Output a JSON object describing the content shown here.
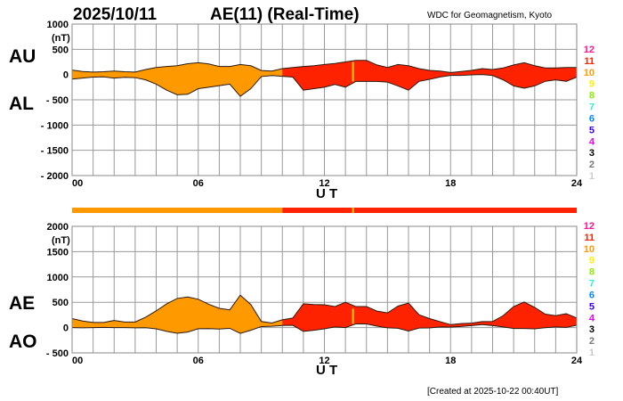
{
  "header": {
    "date": "2025/10/11",
    "title": "AE(11) (Real-Time)",
    "source": "WDC for Geomagnetism, Kyoto",
    "created": "[Created at 2025-10-22 00:40UT]"
  },
  "colors": {
    "orange": "#ff9900",
    "red": "#ff2200",
    "yellow_marker": "#ffcc00"
  },
  "chart_data": [
    {
      "type": "area",
      "name": "AU/AL",
      "labels": {
        "upper": "AU",
        "lower": "AL"
      },
      "xlabel": "U T",
      "ylabel": "(nT)",
      "xlim": [
        0,
        24
      ],
      "ylim": [
        -2000,
        1000
      ],
      "yticks": [
        1000,
        500,
        0,
        -500,
        -1000,
        -1500,
        -2000
      ],
      "ytick_labels": [
        "1000",
        "500",
        "0",
        "- 500",
        "- 1000",
        "- 1500",
        "- 2000"
      ],
      "xtick_labels": [
        "00",
        "06",
        "12",
        "18",
        "24"
      ],
      "grid": true,
      "x": [
        0,
        0.5,
        1,
        1.5,
        2,
        2.5,
        3,
        3.5,
        4,
        4.5,
        5,
        5.5,
        6,
        6.5,
        7,
        7.5,
        8,
        8.5,
        9,
        9.5,
        10,
        10.5,
        11,
        11.5,
        12,
        12.5,
        13,
        13.5,
        14,
        14.5,
        15,
        15.5,
        16,
        16.5,
        17,
        17.5,
        18,
        18.5,
        19,
        19.5,
        20,
        20.5,
        21,
        21.5,
        22,
        22.5,
        23,
        23.5,
        24
      ],
      "series": [
        {
          "name": "AU",
          "values": [
            88,
            60,
            50,
            55,
            70,
            55,
            50,
            100,
            140,
            160,
            175,
            215,
            235,
            210,
            160,
            160,
            200,
            175,
            80,
            70,
            118,
            140,
            160,
            175,
            200,
            220,
            250,
            280,
            280,
            190,
            140,
            200,
            175,
            118,
            83,
            70,
            40,
            60,
            83,
            118,
            100,
            130,
            190,
            235,
            175,
            130,
            130,
            140,
            140
          ]
        },
        {
          "name": "AL",
          "values": [
            -90,
            -70,
            -50,
            -45,
            -70,
            -55,
            -60,
            -105,
            -190,
            -310,
            -400,
            -390,
            -280,
            -250,
            -220,
            -190,
            -430,
            -280,
            -40,
            -20,
            -35,
            -50,
            -310,
            -280,
            -250,
            -195,
            -250,
            -135,
            -135,
            -135,
            -150,
            -225,
            -310,
            -135,
            -95,
            -47,
            -18,
            -18,
            -5,
            0,
            -20,
            -105,
            -225,
            -270,
            -225,
            -135,
            -105,
            -135,
            -50
          ]
        }
      ]
    },
    {
      "type": "area",
      "name": "AE/AO",
      "labels": {
        "upper": "AE",
        "lower": "AO"
      },
      "xlabel": "U T",
      "ylabel": "(nT)",
      "xlim": [
        0,
        24
      ],
      "ylim": [
        -500,
        2000
      ],
      "yticks": [
        2000,
        1500,
        1000,
        500,
        0,
        -500
      ],
      "ytick_labels": [
        "2000",
        "1500",
        "1000",
        "500",
        "0",
        "- 500"
      ],
      "xtick_labels": [
        "00",
        "06",
        "12",
        "18",
        "24"
      ],
      "grid": true,
      "x": [
        0,
        0.5,
        1,
        1.5,
        2,
        2.5,
        3,
        3.5,
        4,
        4.5,
        5,
        5.5,
        6,
        6.5,
        7,
        7.5,
        8,
        8.5,
        9,
        9.5,
        10,
        10.5,
        11,
        11.5,
        12,
        12.5,
        13,
        13.5,
        14,
        14.5,
        15,
        15.5,
        16,
        16.5,
        17,
        17.5,
        18,
        18.5,
        19,
        19.5,
        20,
        20.5,
        21,
        21.5,
        22,
        22.5,
        23,
        23.5,
        24
      ],
      "series": [
        {
          "name": "AE",
          "values": [
            178,
            130,
            100,
            100,
            140,
            110,
            110,
            205,
            330,
            470,
            575,
            605,
            560,
            460,
            380,
            350,
            640,
            455,
            120,
            90,
            153,
            190,
            470,
            455,
            450,
            415,
            500,
            415,
            415,
            325,
            290,
            425,
            485,
            253,
            178,
            117,
            58,
            78,
            88,
            118,
            120,
            235,
            415,
            505,
            400,
            265,
            235,
            275,
            190
          ]
        },
        {
          "name": "AO",
          "values": [
            -1,
            -5,
            0,
            5,
            0,
            0,
            -5,
            -3,
            -25,
            -75,
            -113,
            -88,
            -23,
            -20,
            -30,
            -15,
            -115,
            -53,
            20,
            25,
            42,
            45,
            -75,
            -53,
            -25,
            13,
            0,
            73,
            73,
            28,
            -5,
            -13,
            -68,
            -9,
            -6,
            12,
            11,
            21,
            39,
            59,
            40,
            13,
            -18,
            -18,
            -25,
            -3,
            13,
            3,
            45
          ]
        }
      ]
    }
  ],
  "station_bar": {
    "orange_until_hour": 10,
    "marker_hour": 13.36
  },
  "station_legend": [
    {
      "label": "12",
      "color": "#ff1493"
    },
    {
      "label": "11",
      "color": "#ff2200"
    },
    {
      "label": "10",
      "color": "#ff9900"
    },
    {
      "label": "9",
      "color": "#ffee00"
    },
    {
      "label": "8",
      "color": "#88ee00"
    },
    {
      "label": "7",
      "color": "#33eecc"
    },
    {
      "label": "6",
      "color": "#0088ff"
    },
    {
      "label": "5",
      "color": "#3300ff"
    },
    {
      "label": "4",
      "color": "#ee00ee"
    },
    {
      "label": "3",
      "color": "#000000"
    },
    {
      "label": "2",
      "color": "#777777"
    },
    {
      "label": "1",
      "color": "#cccccc"
    }
  ]
}
